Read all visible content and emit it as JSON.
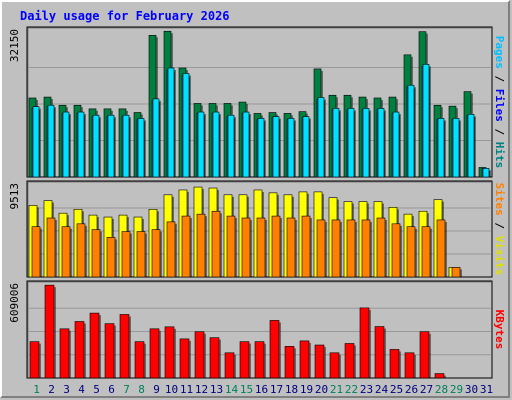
{
  "chart_data": {
    "type": "bar",
    "title": "Daily usage for February 2026",
    "x": [
      "1",
      "2",
      "3",
      "4",
      "5",
      "6",
      "7",
      "8",
      "9",
      "10",
      "11",
      "12",
      "13",
      "14",
      "15",
      "16",
      "17",
      "18",
      "19",
      "20",
      "21",
      "22",
      "23",
      "24",
      "25",
      "26",
      "27",
      "28",
      "29",
      "30",
      "31"
    ],
    "weekend_days": [
      "1",
      "7",
      "8",
      "14",
      "15",
      "21",
      "22",
      "28",
      "29"
    ],
    "panels": [
      {
        "name": "hits-files-pages",
        "ymax_label": "32150",
        "ymax": 32150,
        "series": [
          {
            "name": "Hits",
            "color": "#008040",
            "values": [
              17400,
              17600,
              15800,
              15800,
              15000,
              15000,
              15000,
              14200,
              31200,
              32100,
              24000,
              16200,
              16200,
              16200,
              16500,
              14000,
              14200,
              14000,
              14400,
              23800,
              18000,
              18000,
              17600,
              17400,
              17600,
              26900,
              32000,
              15800,
              15600,
              18800,
              2100
            ]
          },
          {
            "name": "Files",
            "color": "#0080ff",
            "values": [
              15500,
              15800,
              14300,
              14300,
              13600,
              13600,
              13600,
              12900,
              17200,
              24000,
              22800,
              14300,
              14300,
              13600,
              14300,
              12900,
              13300,
              12900,
              13300,
              17500,
              15100,
              15100,
              15100,
              15100,
              14300,
              20200,
              24800,
              12900,
              12900,
              13800,
              1900
            ]
          },
          {
            "name": "Pages",
            "color": "#00e0ff",
            "values": [
              15500,
              15800,
              14300,
              14300,
              13600,
              13600,
              13600,
              12900,
              17200,
              24000,
              22800,
              14300,
              14300,
              13600,
              14300,
              12900,
              13300,
              12900,
              13300,
              17500,
              15100,
              15100,
              15100,
              15100,
              14300,
              20200,
              24800,
              12900,
              12900,
              13800,
              1900
            ]
          }
        ]
      },
      {
        "name": "visits-sites",
        "ymax_label": "9513",
        "ymax": 9513,
        "series": [
          {
            "name": "Visits",
            "color": "#ffff00",
            "values": [
              7400,
              7900,
              6600,
              7000,
              6400,
              6200,
              6400,
              6200,
              7000,
              8500,
              9000,
              9300,
              9200,
              8500,
              8500,
              9000,
              8700,
              8500,
              8800,
              8800,
              8200,
              7800,
              7800,
              7800,
              7200,
              6500,
              6800,
              8000,
              1000,
              0,
              0
            ]
          },
          {
            "name": "Sites",
            "color": "#ff8000",
            "values": [
              5200,
              6100,
              5200,
              5500,
              4900,
              4100,
              4700,
              4700,
              4900,
              5700,
              6300,
              6500,
              6800,
              6300,
              6100,
              6100,
              6300,
              6100,
              6300,
              5900,
              5900,
              5900,
              5900,
              6100,
              5500,
              5200,
              5200,
              5900,
              1000,
              0,
              0
            ]
          }
        ]
      },
      {
        "name": "kbytes",
        "ymax_label": "609006",
        "ymax": 609006,
        "series": [
          {
            "name": "KBytes",
            "color": "#ff0000",
            "values": [
              238000,
              608000,
              322000,
              370000,
              425000,
              356000,
              416000,
              238000,
              322000,
              335000,
              256000,
              303000,
              264000,
              165000,
              238000,
              238000,
              377000,
              207000,
              243000,
              216000,
              165000,
              226000,
              459000,
              337000,
              187000,
              165000,
              303000,
              29000,
              0,
              0,
              0
            ]
          }
        ]
      }
    ],
    "axis_labels": {
      "top": [
        "Pages",
        "Files",
        "Hits"
      ],
      "middle": [
        "Sites",
        "Visits"
      ],
      "bottom": [
        "KBytes"
      ],
      "separator": " / "
    },
    "colors": {
      "background": "#c0c0c0",
      "title": "#0000ff",
      "weekday": "#000080",
      "weekend": "#00805c",
      "hits_label": "#008080",
      "files_label": "#0000ff",
      "pages_label": "#00c0ff",
      "sites_label": "#ff8000",
      "visits_label": "#e0e000",
      "kbytes_label": "#ff0000"
    }
  }
}
